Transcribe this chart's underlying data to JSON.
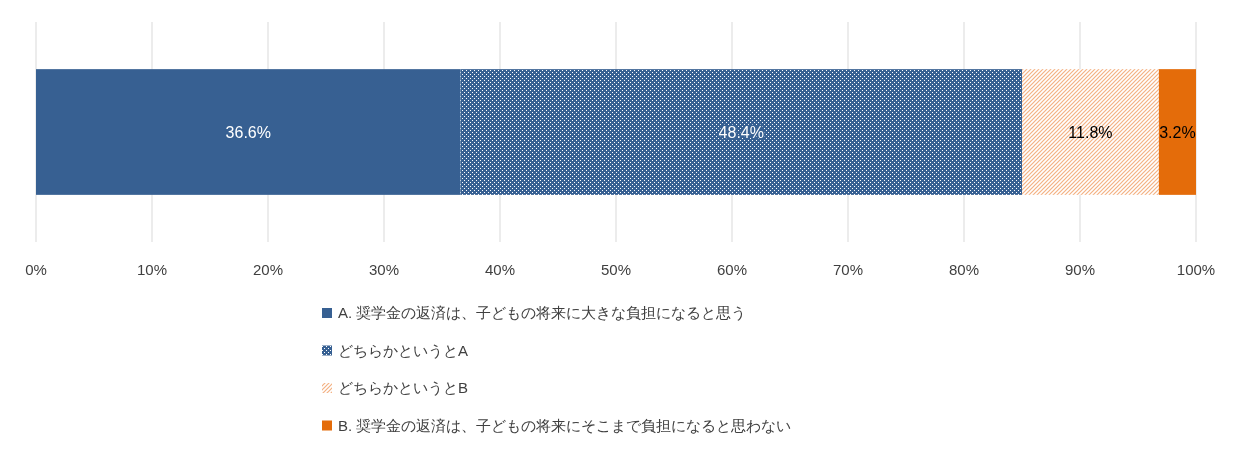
{
  "chart_data": {
    "type": "bar",
    "orientation": "horizontal",
    "stacked": true,
    "categories": [
      null
    ],
    "series": [
      {
        "name": "A. 奨学金の返済は、子どもの将来に大きな負担になると思う",
        "color": "#376092",
        "values": [
          36.6
        ],
        "value_labels": [
          "36.6%"
        ]
      },
      {
        "name": "どちらかというとA",
        "color": "#376092",
        "values": [
          48.4
        ],
        "value_labels": [
          "48.4%"
        ]
      },
      {
        "name": "どちらかというとB",
        "color": "#f4b183",
        "values": [
          11.8
        ],
        "value_labels": [
          "11.8%"
        ]
      },
      {
        "name": "B. 奨学金の返済は、子どもの将来にそこまで負担になると思わない",
        "color": "#e46c0a",
        "values": [
          3.2
        ],
        "value_labels": [
          "3.2%"
        ]
      }
    ],
    "xlim": [
      0,
      100
    ],
    "xticks": [
      {
        "value": 0,
        "label": "0%"
      },
      {
        "value": 10,
        "label": "10%"
      },
      {
        "value": 20,
        "label": "20%"
      },
      {
        "value": 30,
        "label": "30%"
      },
      {
        "value": 40,
        "label": "40%"
      },
      {
        "value": 50,
        "label": "50%"
      },
      {
        "value": 60,
        "label": "60%"
      },
      {
        "value": 70,
        "label": "70%"
      },
      {
        "value": 80,
        "label": "80%"
      },
      {
        "value": 90,
        "label": "90%"
      },
      {
        "value": 100,
        "label": "100%"
      }
    ],
    "grid": "x",
    "legend": "bottom"
  }
}
